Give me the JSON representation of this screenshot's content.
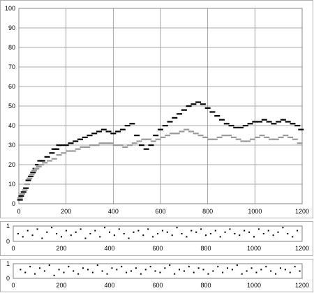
{
  "chart_data": [
    {
      "type": "scatter",
      "title": "",
      "xlabel": "",
      "ylabel": "",
      "xlim": [
        0,
        1200
      ],
      "ylim": [
        0,
        100
      ],
      "x_ticks": [
        0,
        200,
        400,
        600,
        800,
        1000,
        1200
      ],
      "y_ticks": [
        0,
        10,
        20,
        30,
        40,
        50,
        60,
        70,
        80,
        90,
        100
      ],
      "grid": true,
      "series": [
        {
          "color": "#000000",
          "marker": "horizontal-dash",
          "points": [
            [
              5,
              2
            ],
            [
              10,
              4
            ],
            [
              20,
              6
            ],
            [
              30,
              8
            ],
            [
              40,
              12
            ],
            [
              50,
              14
            ],
            [
              60,
              16
            ],
            [
              70,
              18
            ],
            [
              80,
              20
            ],
            [
              90,
              22
            ],
            [
              100,
              22
            ],
            [
              120,
              24
            ],
            [
              140,
              26
            ],
            [
              150,
              28
            ],
            [
              160,
              28
            ],
            [
              170,
              30
            ],
            [
              180,
              30
            ],
            [
              200,
              30
            ],
            [
              220,
              31
            ],
            [
              240,
              32
            ],
            [
              260,
              33
            ],
            [
              280,
              34
            ],
            [
              300,
              35
            ],
            [
              320,
              36
            ],
            [
              340,
              37
            ],
            [
              360,
              38
            ],
            [
              380,
              37
            ],
            [
              400,
              36
            ],
            [
              420,
              37
            ],
            [
              440,
              38
            ],
            [
              460,
              40
            ],
            [
              480,
              41
            ],
            [
              500,
              35
            ],
            [
              520,
              30
            ],
            [
              540,
              28
            ],
            [
              560,
              30
            ],
            [
              580,
              35
            ],
            [
              600,
              38
            ],
            [
              620,
              40
            ],
            [
              640,
              42
            ],
            [
              660,
              44
            ],
            [
              680,
              46
            ],
            [
              700,
              48
            ],
            [
              720,
              50
            ],
            [
              740,
              51
            ],
            [
              760,
              52
            ],
            [
              780,
              51
            ],
            [
              800,
              49
            ],
            [
              820,
              47
            ],
            [
              840,
              45
            ],
            [
              860,
              43
            ],
            [
              880,
              41
            ],
            [
              900,
              40
            ],
            [
              920,
              39
            ],
            [
              940,
              39
            ],
            [
              960,
              40
            ],
            [
              980,
              41
            ],
            [
              1000,
              42
            ],
            [
              1020,
              42
            ],
            [
              1040,
              43
            ],
            [
              1060,
              42
            ],
            [
              1080,
              41
            ],
            [
              1100,
              42
            ],
            [
              1120,
              43
            ],
            [
              1140,
              42
            ],
            [
              1160,
              41
            ],
            [
              1180,
              40
            ],
            [
              1195,
              38
            ]
          ]
        },
        {
          "color": "#999999",
          "marker": "horizontal-dash",
          "points": [
            [
              5,
              3
            ],
            [
              15,
              5
            ],
            [
              25,
              7
            ],
            [
              35,
              10
            ],
            [
              45,
              13
            ],
            [
              55,
              15
            ],
            [
              65,
              17
            ],
            [
              75,
              18
            ],
            [
              85,
              19
            ],
            [
              95,
              20
            ],
            [
              110,
              21
            ],
            [
              130,
              22
            ],
            [
              150,
              23
            ],
            [
              170,
              25
            ],
            [
              190,
              26
            ],
            [
              210,
              27
            ],
            [
              230,
              27
            ],
            [
              250,
              28
            ],
            [
              270,
              29
            ],
            [
              290,
              29
            ],
            [
              310,
              30
            ],
            [
              330,
              30
            ],
            [
              350,
              31
            ],
            [
              370,
              31
            ],
            [
              390,
              31
            ],
            [
              410,
              30
            ],
            [
              430,
              30
            ],
            [
              450,
              29
            ],
            [
              470,
              30
            ],
            [
              490,
              31
            ],
            [
              510,
              32
            ],
            [
              530,
              33
            ],
            [
              550,
              33
            ],
            [
              570,
              32
            ],
            [
              590,
              33
            ],
            [
              610,
              34
            ],
            [
              630,
              35
            ],
            [
              650,
              36
            ],
            [
              670,
              36
            ],
            [
              690,
              37
            ],
            [
              710,
              38
            ],
            [
              730,
              37
            ],
            [
              750,
              36
            ],
            [
              770,
              35
            ],
            [
              790,
              34
            ],
            [
              810,
              33
            ],
            [
              830,
              33
            ],
            [
              850,
              34
            ],
            [
              870,
              35
            ],
            [
              890,
              35
            ],
            [
              910,
              34
            ],
            [
              930,
              33
            ],
            [
              950,
              32
            ],
            [
              970,
              32
            ],
            [
              990,
              33
            ],
            [
              1010,
              34
            ],
            [
              1030,
              35
            ],
            [
              1050,
              34
            ],
            [
              1070,
              33
            ],
            [
              1090,
              33
            ],
            [
              1110,
              34
            ],
            [
              1130,
              35
            ],
            [
              1150,
              34
            ],
            [
              1170,
              33
            ],
            [
              1190,
              31
            ]
          ]
        }
      ]
    },
    {
      "type": "scatter",
      "title": "",
      "xlim": [
        0,
        1200
      ],
      "ylim": [
        0,
        1
      ],
      "x_ticks": [
        0,
        200,
        400,
        600,
        800,
        1000,
        1200
      ],
      "y_ticks": [
        0,
        1
      ],
      "grid": false,
      "series": [
        {
          "color": "#000000",
          "marker": "dot",
          "description": "binary event raster",
          "points": [
            [
              20,
              0.5
            ],
            [
              40,
              0.3
            ],
            [
              60,
              0.7
            ],
            [
              80,
              0.4
            ],
            [
              100,
              0.8
            ],
            [
              120,
              0.2
            ],
            [
              140,
              0.6
            ],
            [
              160,
              0.9
            ],
            [
              180,
              0.5
            ],
            [
              200,
              0.3
            ],
            [
              220,
              0.7
            ],
            [
              240,
              0.4
            ],
            [
              260,
              0.6
            ],
            [
              280,
              0.8
            ],
            [
              300,
              0.2
            ],
            [
              320,
              0.5
            ],
            [
              340,
              0.7
            ],
            [
              360,
              0.3
            ],
            [
              380,
              0.9
            ],
            [
              400,
              0.6
            ],
            [
              420,
              0.4
            ],
            [
              440,
              0.8
            ],
            [
              460,
              0.5
            ],
            [
              480,
              0.2
            ],
            [
              500,
              0.6
            ],
            [
              520,
              0.7
            ],
            [
              540,
              0.4
            ],
            [
              560,
              0.8
            ],
            [
              580,
              0.3
            ],
            [
              600,
              0.5
            ],
            [
              620,
              0.7
            ],
            [
              640,
              0.6
            ],
            [
              660,
              0.4
            ],
            [
              680,
              0.9
            ],
            [
              700,
              0.5
            ],
            [
              720,
              0.3
            ],
            [
              740,
              0.7
            ],
            [
              760,
              0.6
            ],
            [
              780,
              0.8
            ],
            [
              800,
              0.4
            ],
            [
              820,
              0.5
            ],
            [
              840,
              0.7
            ],
            [
              860,
              0.3
            ],
            [
              880,
              0.6
            ],
            [
              900,
              0.8
            ],
            [
              920,
              0.5
            ],
            [
              940,
              0.4
            ],
            [
              960,
              0.7
            ],
            [
              980,
              0.6
            ],
            [
              1000,
              0.3
            ],
            [
              1020,
              0.8
            ],
            [
              1040,
              0.5
            ],
            [
              1060,
              0.7
            ],
            [
              1080,
              0.4
            ],
            [
              1100,
              0.6
            ],
            [
              1120,
              0.9
            ],
            [
              1140,
              0.5
            ],
            [
              1160,
              0.3
            ],
            [
              1180,
              0.7
            ]
          ]
        }
      ]
    },
    {
      "type": "scatter",
      "title": "",
      "xlim": [
        0,
        1200
      ],
      "ylim": [
        0,
        1
      ],
      "x_ticks": [
        0,
        200,
        400,
        600,
        800,
        1000,
        1200
      ],
      "y_ticks": [
        0,
        1
      ],
      "grid": false,
      "series": [
        {
          "color": "#000000",
          "marker": "dot",
          "description": "binary event raster",
          "points": [
            [
              30,
              0.6
            ],
            [
              50,
              0.4
            ],
            [
              70,
              0.8
            ],
            [
              90,
              0.3
            ],
            [
              110,
              0.7
            ],
            [
              130,
              0.5
            ],
            [
              150,
              0.9
            ],
            [
              170,
              0.2
            ],
            [
              190,
              0.6
            ],
            [
              210,
              0.4
            ],
            [
              230,
              0.8
            ],
            [
              250,
              0.5
            ],
            [
              270,
              0.3
            ],
            [
              290,
              0.7
            ],
            [
              310,
              0.6
            ],
            [
              330,
              0.4
            ],
            [
              350,
              0.9
            ],
            [
              370,
              0.5
            ],
            [
              390,
              0.3
            ],
            [
              410,
              0.7
            ],
            [
              430,
              0.6
            ],
            [
              450,
              0.8
            ],
            [
              470,
              0.4
            ],
            [
              490,
              0.5
            ],
            [
              510,
              0.7
            ],
            [
              530,
              0.3
            ],
            [
              550,
              0.6
            ],
            [
              570,
              0.8
            ],
            [
              590,
              0.5
            ],
            [
              610,
              0.4
            ],
            [
              630,
              0.7
            ],
            [
              650,
              0.9
            ],
            [
              670,
              0.3
            ],
            [
              690,
              0.6
            ],
            [
              710,
              0.5
            ],
            [
              730,
              0.8
            ],
            [
              750,
              0.4
            ],
            [
              770,
              0.7
            ],
            [
              790,
              0.6
            ],
            [
              810,
              0.3
            ],
            [
              830,
              0.5
            ],
            [
              850,
              0.8
            ],
            [
              870,
              0.4
            ],
            [
              890,
              0.7
            ],
            [
              910,
              0.6
            ],
            [
              930,
              0.9
            ],
            [
              950,
              0.3
            ],
            [
              970,
              0.5
            ],
            [
              990,
              0.7
            ],
            [
              1010,
              0.4
            ],
            [
              1030,
              0.6
            ],
            [
              1050,
              0.8
            ],
            [
              1070,
              0.5
            ],
            [
              1090,
              0.3
            ],
            [
              1110,
              0.7
            ],
            [
              1130,
              0.6
            ],
            [
              1150,
              0.4
            ],
            [
              1170,
              0.8
            ],
            [
              1190,
              0.5
            ]
          ]
        }
      ]
    }
  ]
}
